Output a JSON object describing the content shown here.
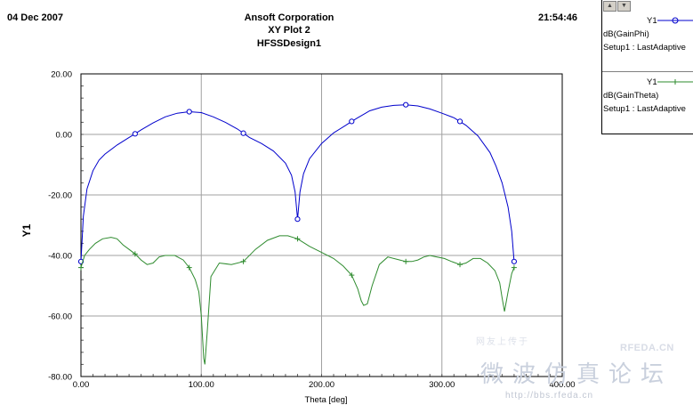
{
  "header": {
    "date": "04 Dec 2007",
    "company": "Ansoft Corporation",
    "plot_name": "XY Plot 2",
    "design": "HFSSDesign1",
    "time": "21:54:46"
  },
  "legend": {
    "entries": [
      {
        "y_name": "Y1",
        "quantity": "dB(GainPhi)",
        "setup": "Setup1 : LastAdaptive",
        "color": "#0000cc",
        "marker": "circle"
      },
      {
        "y_name": "Y1",
        "quantity": "dB(GainTheta)",
        "setup": "Setup1 : LastAdaptive",
        "color": "#2e8b2e",
        "marker": "plus"
      }
    ]
  },
  "watermark": {
    "top_text": "网友上传于",
    "site": "RFEDA.CN",
    "chinese": "微波仿真论坛",
    "url": "http://bbs.rfeda.cn"
  },
  "chart_data": {
    "type": "line",
    "xlabel": "Theta [deg]",
    "ylabel": "Y1",
    "xlim": [
      0,
      400
    ],
    "ylim": [
      -80,
      20
    ],
    "x_ticks": [
      0,
      100,
      200,
      300,
      400
    ],
    "x_tick_labels": [
      "0.00",
      "100.00",
      "200.00",
      "300.00",
      "400.00"
    ],
    "y_ticks": [
      -80,
      -60,
      -40,
      -20,
      0,
      20
    ],
    "y_tick_labels": [
      "-80.00",
      "-60.00",
      "-40.00",
      "-20.00",
      "0.00",
      "20.00"
    ],
    "grid": true,
    "legend_position": "top-right outside",
    "series": [
      {
        "name": "dB(GainPhi)",
        "color": "#0000cc",
        "marker": "circle",
        "x": [
          0,
          2,
          5,
          10,
          15,
          20,
          30,
          40,
          45,
          50,
          60,
          70,
          80,
          90,
          100,
          110,
          120,
          130,
          135,
          140,
          150,
          160,
          170,
          175,
          178,
          180,
          182,
          185,
          190,
          200,
          210,
          220,
          225,
          230,
          240,
          250,
          260,
          270,
          280,
          290,
          300,
          310,
          315,
          320,
          330,
          340,
          345,
          350,
          355,
          358,
          360
        ],
        "y": [
          -42,
          -27,
          -18,
          -12,
          -8.5,
          -6.5,
          -3.5,
          -1.0,
          0.2,
          1.5,
          3.8,
          5.8,
          7.0,
          7.5,
          7.2,
          5.8,
          4.0,
          1.8,
          0.4,
          -1.0,
          -3.0,
          -5.5,
          -9.5,
          -13.5,
          -19,
          -28,
          -19,
          -13,
          -8.0,
          -3.0,
          0.5,
          3.0,
          4.3,
          5.5,
          7.8,
          9.0,
          9.6,
          9.8,
          9.4,
          8.4,
          7.0,
          5.5,
          4.3,
          3.0,
          -0.5,
          -6.0,
          -10.5,
          -16.0,
          -24.0,
          -32.0,
          -42.0
        ],
        "marker_x": [
          0,
          45,
          90,
          135,
          180,
          225,
          270,
          315,
          360
        ]
      },
      {
        "name": "dB(GainTheta)",
        "color": "#2e8b2e",
        "marker": "plus",
        "x": [
          0,
          3,
          7,
          12,
          18,
          25,
          30,
          35,
          40,
          45,
          50,
          55,
          60,
          65,
          70,
          78,
          85,
          90,
          95,
          98,
          100,
          102,
          103,
          105,
          108,
          115,
          125,
          135,
          145,
          155,
          165,
          172,
          180,
          190,
          200,
          210,
          218,
          225,
          230,
          233,
          235,
          238,
          242,
          248,
          255,
          265,
          270,
          275,
          280,
          285,
          290,
          296,
          302,
          308,
          315,
          320,
          326,
          332,
          338,
          344,
          348,
          350,
          352,
          355,
          358,
          360
        ],
        "y": [
          -44,
          -40,
          -38,
          -36,
          -34.5,
          -34,
          -34.5,
          -36.5,
          -38,
          -39.5,
          -41.5,
          -43,
          -42.5,
          -40.5,
          -40,
          -40,
          -41.5,
          -44,
          -48,
          -52,
          -60,
          -74,
          -76,
          -65,
          -47,
          -42.5,
          -43,
          -42,
          -38,
          -35,
          -33.5,
          -33.5,
          -34.5,
          -37,
          -39,
          -41,
          -43.5,
          -46.5,
          -51,
          -55,
          -56.5,
          -56,
          -50,
          -43,
          -40.5,
          -41.5,
          -42,
          -42,
          -41.5,
          -40.5,
          -40,
          -40.5,
          -41,
          -42,
          -43,
          -42.5,
          -41,
          -41,
          -42.5,
          -45,
          -49,
          -54,
          -58.5,
          -52,
          -46,
          -44
        ],
        "marker_x": [
          0,
          45,
          90,
          135,
          180,
          225,
          270,
          315,
          360
        ]
      }
    ]
  }
}
